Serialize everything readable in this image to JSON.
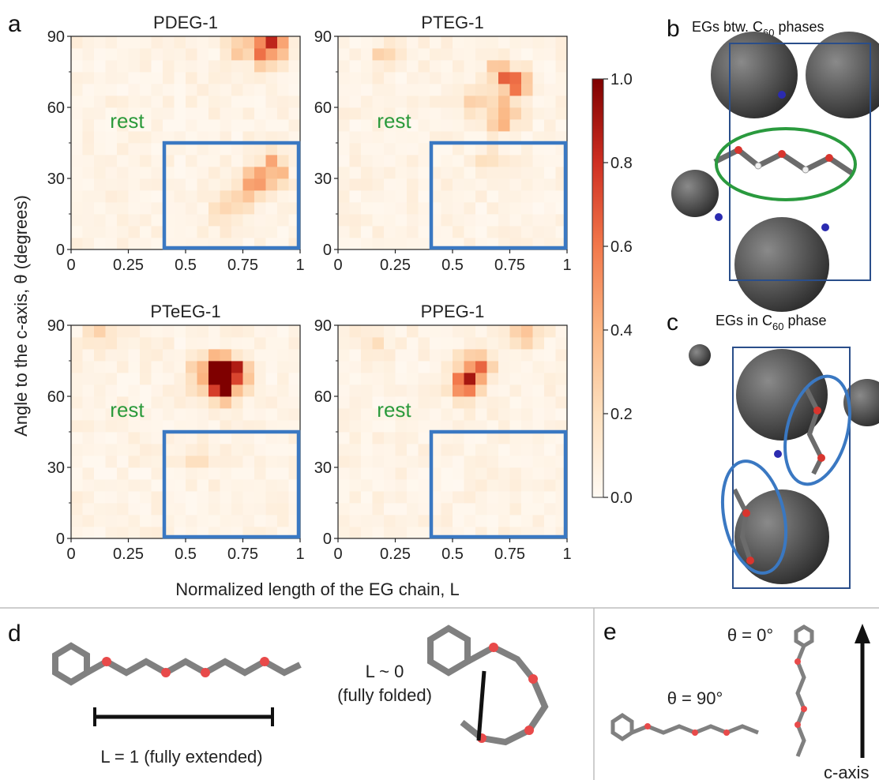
{
  "panel_labels": [
    "a",
    "b",
    "c",
    "d",
    "e"
  ],
  "panel_b_title": "EGs btw. C",
  "panel_b_title_sub": "60",
  "panel_b_title_end": " phases",
  "panel_c_title": "EGs in C",
  "panel_c_title_sub": "60",
  "panel_c_title_end": " phase",
  "region_label": "rest",
  "colors": {
    "high": "#7f0000",
    "mid": "#e65c3b",
    "low": "#fde9d3",
    "box": "#3a78c2",
    "rest": "#2b9a3b",
    "oxygen": "#e84a4a",
    "carbon": "#707070"
  },
  "panel_d": {
    "label_extended": "L = 1 (fully extended)",
    "label_folded_1": "L ~ 0",
    "label_folded_2": "(fully folded)"
  },
  "panel_e": {
    "label_0": "θ = 0°",
    "label_90": "θ = 90°",
    "axis_label": "c-axis"
  },
  "chart_data": [
    {
      "type": "heatmap",
      "title": "PDEG-1",
      "xlabel": "Normalized length of the EG chain, L",
      "ylabel": "Angle to the c-axis, θ (degrees)",
      "xlim": [
        0,
        1
      ],
      "ylim": [
        0,
        90
      ],
      "xticks": [
        "0",
        "0.25",
        "0.5",
        "0.75",
        "1"
      ],
      "yticks": [
        "0",
        "30",
        "60",
        "90"
      ],
      "region_box": {
        "L": [
          0.4,
          1.0
        ],
        "theta": [
          0,
          45
        ]
      },
      "hotspots": [
        {
          "L": 0.88,
          "theta": 87,
          "value": 0.6
        },
        {
          "L": 0.85,
          "theta": 82,
          "value": 0.45
        },
        {
          "L": 0.75,
          "theta": 85,
          "value": 0.3
        },
        {
          "L": 0.88,
          "theta": 34,
          "value": 0.55
        },
        {
          "L": 0.8,
          "theta": 28,
          "value": 0.4
        },
        {
          "L": 0.72,
          "theta": 22,
          "value": 0.3
        },
        {
          "L": 0.68,
          "theta": 16,
          "value": 0.25
        }
      ]
    },
    {
      "type": "heatmap",
      "title": "PTEG-1",
      "xlim": [
        0,
        1
      ],
      "ylim": [
        0,
        90
      ],
      "xticks": [
        "0",
        "0.25",
        "0.5",
        "0.75",
        "1"
      ],
      "yticks": [
        "0",
        "30",
        "60",
        "90"
      ],
      "region_box": {
        "L": [
          0.4,
          1.0
        ],
        "theta": [
          0,
          45
        ]
      },
      "hotspots": [
        {
          "L": 0.77,
          "theta": 70,
          "value": 0.6
        },
        {
          "L": 0.72,
          "theta": 57,
          "value": 0.55
        },
        {
          "L": 0.7,
          "theta": 74,
          "value": 0.35
        },
        {
          "L": 0.62,
          "theta": 63,
          "value": 0.3
        },
        {
          "L": 0.2,
          "theta": 82,
          "value": 0.2
        },
        {
          "L": 0.65,
          "theta": 38,
          "value": 0.15
        }
      ]
    },
    {
      "type": "heatmap",
      "title": "PTeEG-1",
      "xlim": [
        0,
        1
      ],
      "ylim": [
        0,
        90
      ],
      "xticks": [
        "0",
        "0.25",
        "0.5",
        "0.75",
        "1"
      ],
      "yticks": [
        "0",
        "30",
        "60",
        "90"
      ],
      "region_box": {
        "L": [
          0.4,
          1.0
        ],
        "theta": [
          0,
          45
        ]
      },
      "hotspots": [
        {
          "L": 0.67,
          "theta": 69,
          "value": 1.0
        },
        {
          "L": 0.67,
          "theta": 65,
          "value": 0.9
        },
        {
          "L": 0.6,
          "theta": 72,
          "value": 0.6
        },
        {
          "L": 0.72,
          "theta": 70,
          "value": 0.5
        },
        {
          "L": 0.55,
          "theta": 64,
          "value": 0.3
        },
        {
          "L": 0.12,
          "theta": 87,
          "value": 0.2
        },
        {
          "L": 0.55,
          "theta": 35,
          "value": 0.15
        }
      ]
    },
    {
      "type": "heatmap",
      "title": "PPEG-1",
      "xlim": [
        0,
        1
      ],
      "ylim": [
        0,
        90
      ],
      "xticks": [
        "0",
        "0.25",
        "0.5",
        "0.75",
        "1"
      ],
      "yticks": [
        "0",
        "30",
        "60",
        "90"
      ],
      "region_box": {
        "L": [
          0.4,
          1.0
        ],
        "theta": [
          0,
          45
        ]
      },
      "hotspots": [
        {
          "L": 0.57,
          "theta": 70,
          "value": 0.55
        },
        {
          "L": 0.55,
          "theta": 64,
          "value": 0.45
        },
        {
          "L": 0.62,
          "theta": 73,
          "value": 0.35
        },
        {
          "L": 0.83,
          "theta": 88,
          "value": 0.45
        },
        {
          "L": 0.15,
          "theta": 83,
          "value": 0.15
        }
      ]
    }
  ],
  "colorbar": {
    "ticks": [
      "0.0",
      "0.2",
      "0.4",
      "0.6",
      "0.8",
      "1.0"
    ],
    "range": [
      0,
      1
    ]
  }
}
